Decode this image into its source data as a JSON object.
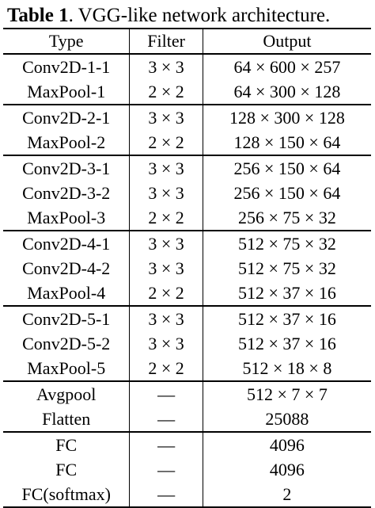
{
  "caption": {
    "label": "Table 1",
    "text": ". VGG-like network architecture."
  },
  "headers": [
    "Type",
    "Filter",
    "Output"
  ],
  "groups": [
    [
      {
        "type": "Conv2D-1-1",
        "filter": "3 × 3",
        "output": "64 × 600 × 257"
      },
      {
        "type": "MaxPool-1",
        "filter": "2 × 2",
        "output": "64 × 300 × 128"
      }
    ],
    [
      {
        "type": "Conv2D-2-1",
        "filter": "3 × 3",
        "output": "128 × 300 × 128"
      },
      {
        "type": "MaxPool-2",
        "filter": "2 × 2",
        "output": "128 × 150 × 64"
      }
    ],
    [
      {
        "type": "Conv2D-3-1",
        "filter": "3 × 3",
        "output": "256 × 150 × 64"
      },
      {
        "type": "Conv2D-3-2",
        "filter": "3 × 3",
        "output": "256 × 150 × 64"
      },
      {
        "type": "MaxPool-3",
        "filter": "2 × 2",
        "output": "256 × 75 × 32"
      }
    ],
    [
      {
        "type": "Conv2D-4-1",
        "filter": "3 × 3",
        "output": "512 × 75 × 32"
      },
      {
        "type": "Conv2D-4-2",
        "filter": "3 × 3",
        "output": "512 × 75 × 32"
      },
      {
        "type": "MaxPool-4",
        "filter": "2 × 2",
        "output": "512 × 37 × 16"
      }
    ],
    [
      {
        "type": "Conv2D-5-1",
        "filter": "3 × 3",
        "output": "512 × 37 × 16"
      },
      {
        "type": "Conv2D-5-2",
        "filter": "3 × 3",
        "output": "512 × 37 × 16"
      },
      {
        "type": "MaxPool-5",
        "filter": "2 × 2",
        "output": "512 × 18 × 8"
      }
    ],
    [
      {
        "type": "Avgpool",
        "filter": "—",
        "output": "512 × 7 × 7"
      },
      {
        "type": "Flatten",
        "filter": "—",
        "output": "25088"
      }
    ],
    [
      {
        "type": "FC",
        "filter": "—",
        "output": "4096"
      },
      {
        "type": "FC",
        "filter": "—",
        "output": "4096"
      },
      {
        "type": "FC(softmax)",
        "filter": "—",
        "output": "2"
      }
    ]
  ]
}
